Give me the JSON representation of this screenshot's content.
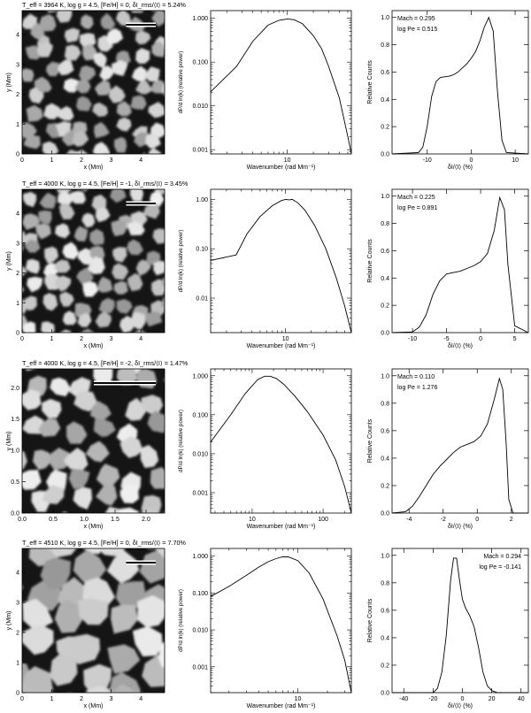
{
  "rows": [
    {
      "title": "T_eff = 3964 K, log g = 4.5, [Fe/H] = 0, δI_rms/⟨I⟩ = 5.24%",
      "image": {
        "xlabel": "x (Mm)",
        "ylabel": "y (Mm)",
        "xticks": [
          "0",
          "1",
          "2",
          "3",
          "4"
        ],
        "yticks": [
          "0",
          "1",
          "2",
          "3",
          "4"
        ],
        "range": [
          0,
          4.8
        ],
        "scalebar_len": 1.0
      },
      "spectrum": {
        "xlabel": "Wavenumber (rad Mm⁻¹)",
        "ylabel": "dP/d ln(k) (relative power)",
        "xlim": [
          1.3,
          55
        ],
        "ylim": [
          0.0008,
          1.5
        ],
        "xticks": [
          {
            "v": 10,
            "label": "10"
          }
        ],
        "yticks": [
          {
            "v": 1,
            "label": "1.000"
          },
          {
            "v": 0.1,
            "label": "0.100"
          },
          {
            "v": 0.01,
            "label": "0.010"
          },
          {
            "v": 0.001,
            "label": "0.001"
          }
        ],
        "x": [
          1.3,
          2.6,
          4,
          6,
          8,
          10,
          12,
          15,
          20,
          25,
          30,
          40,
          50,
          55
        ],
        "y": [
          0.021,
          0.08,
          0.3,
          0.7,
          0.9,
          0.97,
          0.93,
          0.75,
          0.4,
          0.2,
          0.08,
          0.015,
          0.002,
          0.0008
        ]
      },
      "histogram": {
        "xlabel": "δI/⟨I⟩ (%)",
        "ylabel": "Relative Counts",
        "xlim": [
          -18,
          13
        ],
        "ylim": [
          0,
          1.05
        ],
        "xticks": [
          {
            "v": -10,
            "label": "-10"
          },
          {
            "v": 0,
            "label": "0"
          },
          {
            "v": 10,
            "label": "10"
          }
        ],
        "yticks": [
          {
            "v": 0,
            "label": "0.0"
          },
          {
            "v": 0.2,
            "label": "0.2"
          },
          {
            "v": 0.4,
            "label": "0.4"
          },
          {
            "v": 0.6,
            "label": "0.6"
          },
          {
            "v": 0.8,
            "label": "0.8"
          },
          {
            "v": 1,
            "label": "1.0"
          }
        ],
        "annotations": [
          "Mach = 0.295",
          "log Pe = 0.515"
        ],
        "annotation_position": "top-left",
        "x": [
          -18,
          -12,
          -11,
          -10,
          -9,
          -8,
          -7,
          -6,
          -5,
          -4,
          -3,
          -2,
          -1,
          0,
          1,
          2,
          3,
          4,
          5,
          6,
          7,
          8,
          13
        ],
        "y": [
          0,
          0.01,
          0.05,
          0.2,
          0.42,
          0.53,
          0.56,
          0.565,
          0.57,
          0.58,
          0.6,
          0.63,
          0.66,
          0.7,
          0.75,
          0.83,
          0.93,
          1.0,
          0.9,
          0.45,
          0.1,
          0.01,
          0
        ]
      }
    },
    {
      "title": "T_eff = 4000 K, log g = 4.5, [Fe/H] = -1, δI_rms/⟨I⟩ = 3.45%",
      "image": {
        "xlabel": "x (Mm)",
        "ylabel": "y (Mm)",
        "xticks": [
          "0",
          "1",
          "2",
          "3",
          "4"
        ],
        "yticks": [
          "0",
          "1",
          "2",
          "3",
          "4"
        ],
        "range": [
          0,
          4.8
        ],
        "scalebar_len": 1.0
      },
      "spectrum": {
        "xlabel": "Wavenumber (rad Mm⁻¹)",
        "ylabel": "dP/d ln(k) (relative power)",
        "xlim": [
          1.3,
          60
        ],
        "ylim": [
          0.002,
          1.6
        ],
        "xticks": [
          {
            "v": 10,
            "label": "10"
          }
        ],
        "yticks": [
          {
            "v": 1,
            "label": "1.00"
          },
          {
            "v": 0.1,
            "label": "0.10"
          },
          {
            "v": 0.01,
            "label": "0.01"
          }
        ],
        "x": [
          1.3,
          2.6,
          3.5,
          5,
          7,
          9,
          10,
          11,
          12,
          14,
          17,
          22,
          30,
          40,
          50,
          60
        ],
        "y": [
          0.058,
          0.075,
          0.2,
          0.45,
          0.75,
          0.95,
          1.0,
          0.98,
          1.0,
          0.85,
          0.6,
          0.3,
          0.1,
          0.025,
          0.007,
          0.002
        ]
      },
      "histogram": {
        "xlabel": "δI/⟨I⟩ (%)",
        "ylabel": "Relative Counts",
        "xlim": [
          -13,
          7
        ],
        "ylim": [
          0,
          1.05
        ],
        "xticks": [
          {
            "v": -10,
            "label": "-10"
          },
          {
            "v": -5,
            "label": "-5"
          },
          {
            "v": 0,
            "label": "0"
          },
          {
            "v": 5,
            "label": "5"
          }
        ],
        "yticks": [
          {
            "v": 0,
            "label": "0.0"
          },
          {
            "v": 0.2,
            "label": "0.2"
          },
          {
            "v": 0.4,
            "label": "0.4"
          },
          {
            "v": 0.6,
            "label": "0.6"
          },
          {
            "v": 0.8,
            "label": "0.8"
          },
          {
            "v": 1,
            "label": "1.0"
          }
        ],
        "annotations": [
          "Mach = 0.225",
          "log Pe = 0.891"
        ],
        "annotation_position": "top-left",
        "x": [
          -13,
          -10,
          -9,
          -8,
          -7,
          -6,
          -5,
          -4,
          -3,
          -2,
          -1,
          0,
          1,
          2,
          2.8,
          3.5,
          4,
          5,
          7
        ],
        "y": [
          0,
          0.005,
          0.04,
          0.13,
          0.28,
          0.38,
          0.43,
          0.44,
          0.45,
          0.47,
          0.49,
          0.52,
          0.58,
          0.75,
          0.99,
          0.9,
          0.5,
          0.05,
          0
        ]
      }
    },
    {
      "title": "T_eff = 4000 K, log g = 4.5, [Fe/H] = -2, δI_rms/⟨I⟩ = 1.47%",
      "image": {
        "xlabel": "x (Mm)",
        "ylabel": "y (Mm)",
        "xticks": [
          "0.0",
          "0.5",
          "1.0",
          "1.5",
          "2.0"
        ],
        "yticks": [
          "0.0",
          "0.5",
          "1.0",
          "1.5",
          "2.0"
        ],
        "range": [
          0,
          2.3
        ],
        "scalebar_len": 1.0
      },
      "spectrum": {
        "xlabel": "Wavenumber (rad Mm⁻¹)",
        "ylabel": "dP/d ln(k) (relative power)",
        "xlim": [
          2.6,
          250
        ],
        "ylim": [
          0.0003,
          1.5
        ],
        "xticks": [
          {
            "v": 10,
            "label": "10"
          },
          {
            "v": 100,
            "label": "100"
          }
        ],
        "yticks": [
          {
            "v": 1,
            "label": "1.000"
          },
          {
            "v": 0.1,
            "label": "0.100"
          },
          {
            "v": 0.01,
            "label": "0.010"
          },
          {
            "v": 0.001,
            "label": "0.001"
          }
        ],
        "x": [
          2.6,
          5,
          8,
          12,
          15,
          18,
          22,
          28,
          40,
          60,
          100,
          150,
          200,
          250
        ],
        "y": [
          0.02,
          0.1,
          0.35,
          0.8,
          0.97,
          0.97,
          0.85,
          0.6,
          0.3,
          0.12,
          0.03,
          0.007,
          0.0015,
          0.0003
        ]
      },
      "histogram": {
        "xlabel": "δI/⟨I⟩ (%)",
        "ylabel": "Relative Counts",
        "xlim": [
          -5,
          3
        ],
        "ylim": [
          0,
          1.05
        ],
        "xticks": [
          {
            "v": -4,
            "label": "-4"
          },
          {
            "v": -2,
            "label": "-2"
          },
          {
            "v": 0,
            "label": "0"
          },
          {
            "v": 2,
            "label": "2"
          }
        ],
        "yticks": [
          {
            "v": 0,
            "label": "0.0"
          },
          {
            "v": 0.2,
            "label": "0.2"
          },
          {
            "v": 0.4,
            "label": "0.4"
          },
          {
            "v": 0.6,
            "label": "0.6"
          },
          {
            "v": 0.8,
            "label": "0.8"
          },
          {
            "v": 1,
            "label": "1.0"
          }
        ],
        "annotations": [
          "Mach = 0.110",
          "log Pe = 1.276"
        ],
        "annotation_position": "top-left",
        "x": [
          -5,
          -4.2,
          -3.8,
          -3.4,
          -3,
          -2.6,
          -2.2,
          -1.8,
          -1.4,
          -1,
          -0.6,
          -0.2,
          0.2,
          0.6,
          1,
          1.3,
          1.5,
          1.7,
          1.85,
          2.1,
          3
        ],
        "y": [
          0,
          0.01,
          0.05,
          0.12,
          0.2,
          0.28,
          0.34,
          0.39,
          0.44,
          0.48,
          0.5,
          0.52,
          0.56,
          0.65,
          0.83,
          0.98,
          0.9,
          0.5,
          0.1,
          0,
          0
        ]
      }
    },
    {
      "title": "T_eff = 4510 K, log g = 4.5, [Fe/H] = 0, δI_rms/⟨I⟩ = 7.70%",
      "image": {
        "xlabel": "x (Mm)",
        "ylabel": "y (Mm)",
        "xticks": [
          "0",
          "1",
          "2",
          "3",
          "4"
        ],
        "yticks": [
          "0",
          "1",
          "2",
          "3",
          "4"
        ],
        "range": [
          0,
          4.8
        ],
        "scalebar_len": 1.0
      },
      "spectrum": {
        "xlabel": "Wavenumber (rad Mm⁻¹)",
        "ylabel": "dP/d ln(k) (relative power)",
        "xlim": [
          1.3,
          35
        ],
        "ylim": [
          0.0002,
          1.6
        ],
        "xticks": [
          {
            "v": 10,
            "label": "10"
          }
        ],
        "yticks": [
          {
            "v": 1,
            "label": "1.000"
          },
          {
            "v": 0.1,
            "label": "0.100"
          },
          {
            "v": 0.01,
            "label": "0.010"
          },
          {
            "v": 0.001,
            "label": "0.001"
          }
        ],
        "x": [
          1.3,
          2,
          3,
          4,
          5,
          6,
          7,
          8,
          10,
          13,
          18,
          25,
          30,
          35
        ],
        "y": [
          0.08,
          0.15,
          0.3,
          0.5,
          0.7,
          0.85,
          0.95,
          0.95,
          0.75,
          0.35,
          0.07,
          0.007,
          0.0015,
          0.0002
        ]
      },
      "histogram": {
        "xlabel": "δI/⟨I⟩ (%)",
        "ylabel": "Relative Counts",
        "xlim": [
          -48,
          45
        ],
        "ylim": [
          0,
          1.05
        ],
        "xticks": [
          {
            "v": -40,
            "label": "-40"
          },
          {
            "v": -20,
            "label": "-20"
          },
          {
            "v": 0,
            "label": "0"
          },
          {
            "v": 20,
            "label": "20"
          },
          {
            "v": 40,
            "label": "40"
          }
        ],
        "yticks": [
          {
            "v": 0,
            "label": "0.0"
          },
          {
            "v": 0.2,
            "label": "0.2"
          },
          {
            "v": 0.4,
            "label": "0.4"
          },
          {
            "v": 0.6,
            "label": "0.6"
          },
          {
            "v": 0.8,
            "label": "0.8"
          },
          {
            "v": 1,
            "label": "1.0"
          }
        ],
        "annotations": [
          "Mach = 0.294",
          "log Pe = -0.141"
        ],
        "annotation_position": "top-right",
        "x": [
          -48,
          -20,
          -17,
          -14,
          -11,
          -8,
          -6,
          -4,
          -2,
          0,
          2,
          5,
          8,
          11,
          14,
          17,
          20,
          24,
          45
        ],
        "y": [
          0,
          0,
          0.03,
          0.15,
          0.42,
          0.82,
          0.98,
          0.98,
          0.82,
          0.68,
          0.62,
          0.56,
          0.48,
          0.33,
          0.15,
          0.05,
          0.015,
          0,
          0
        ]
      }
    }
  ]
}
